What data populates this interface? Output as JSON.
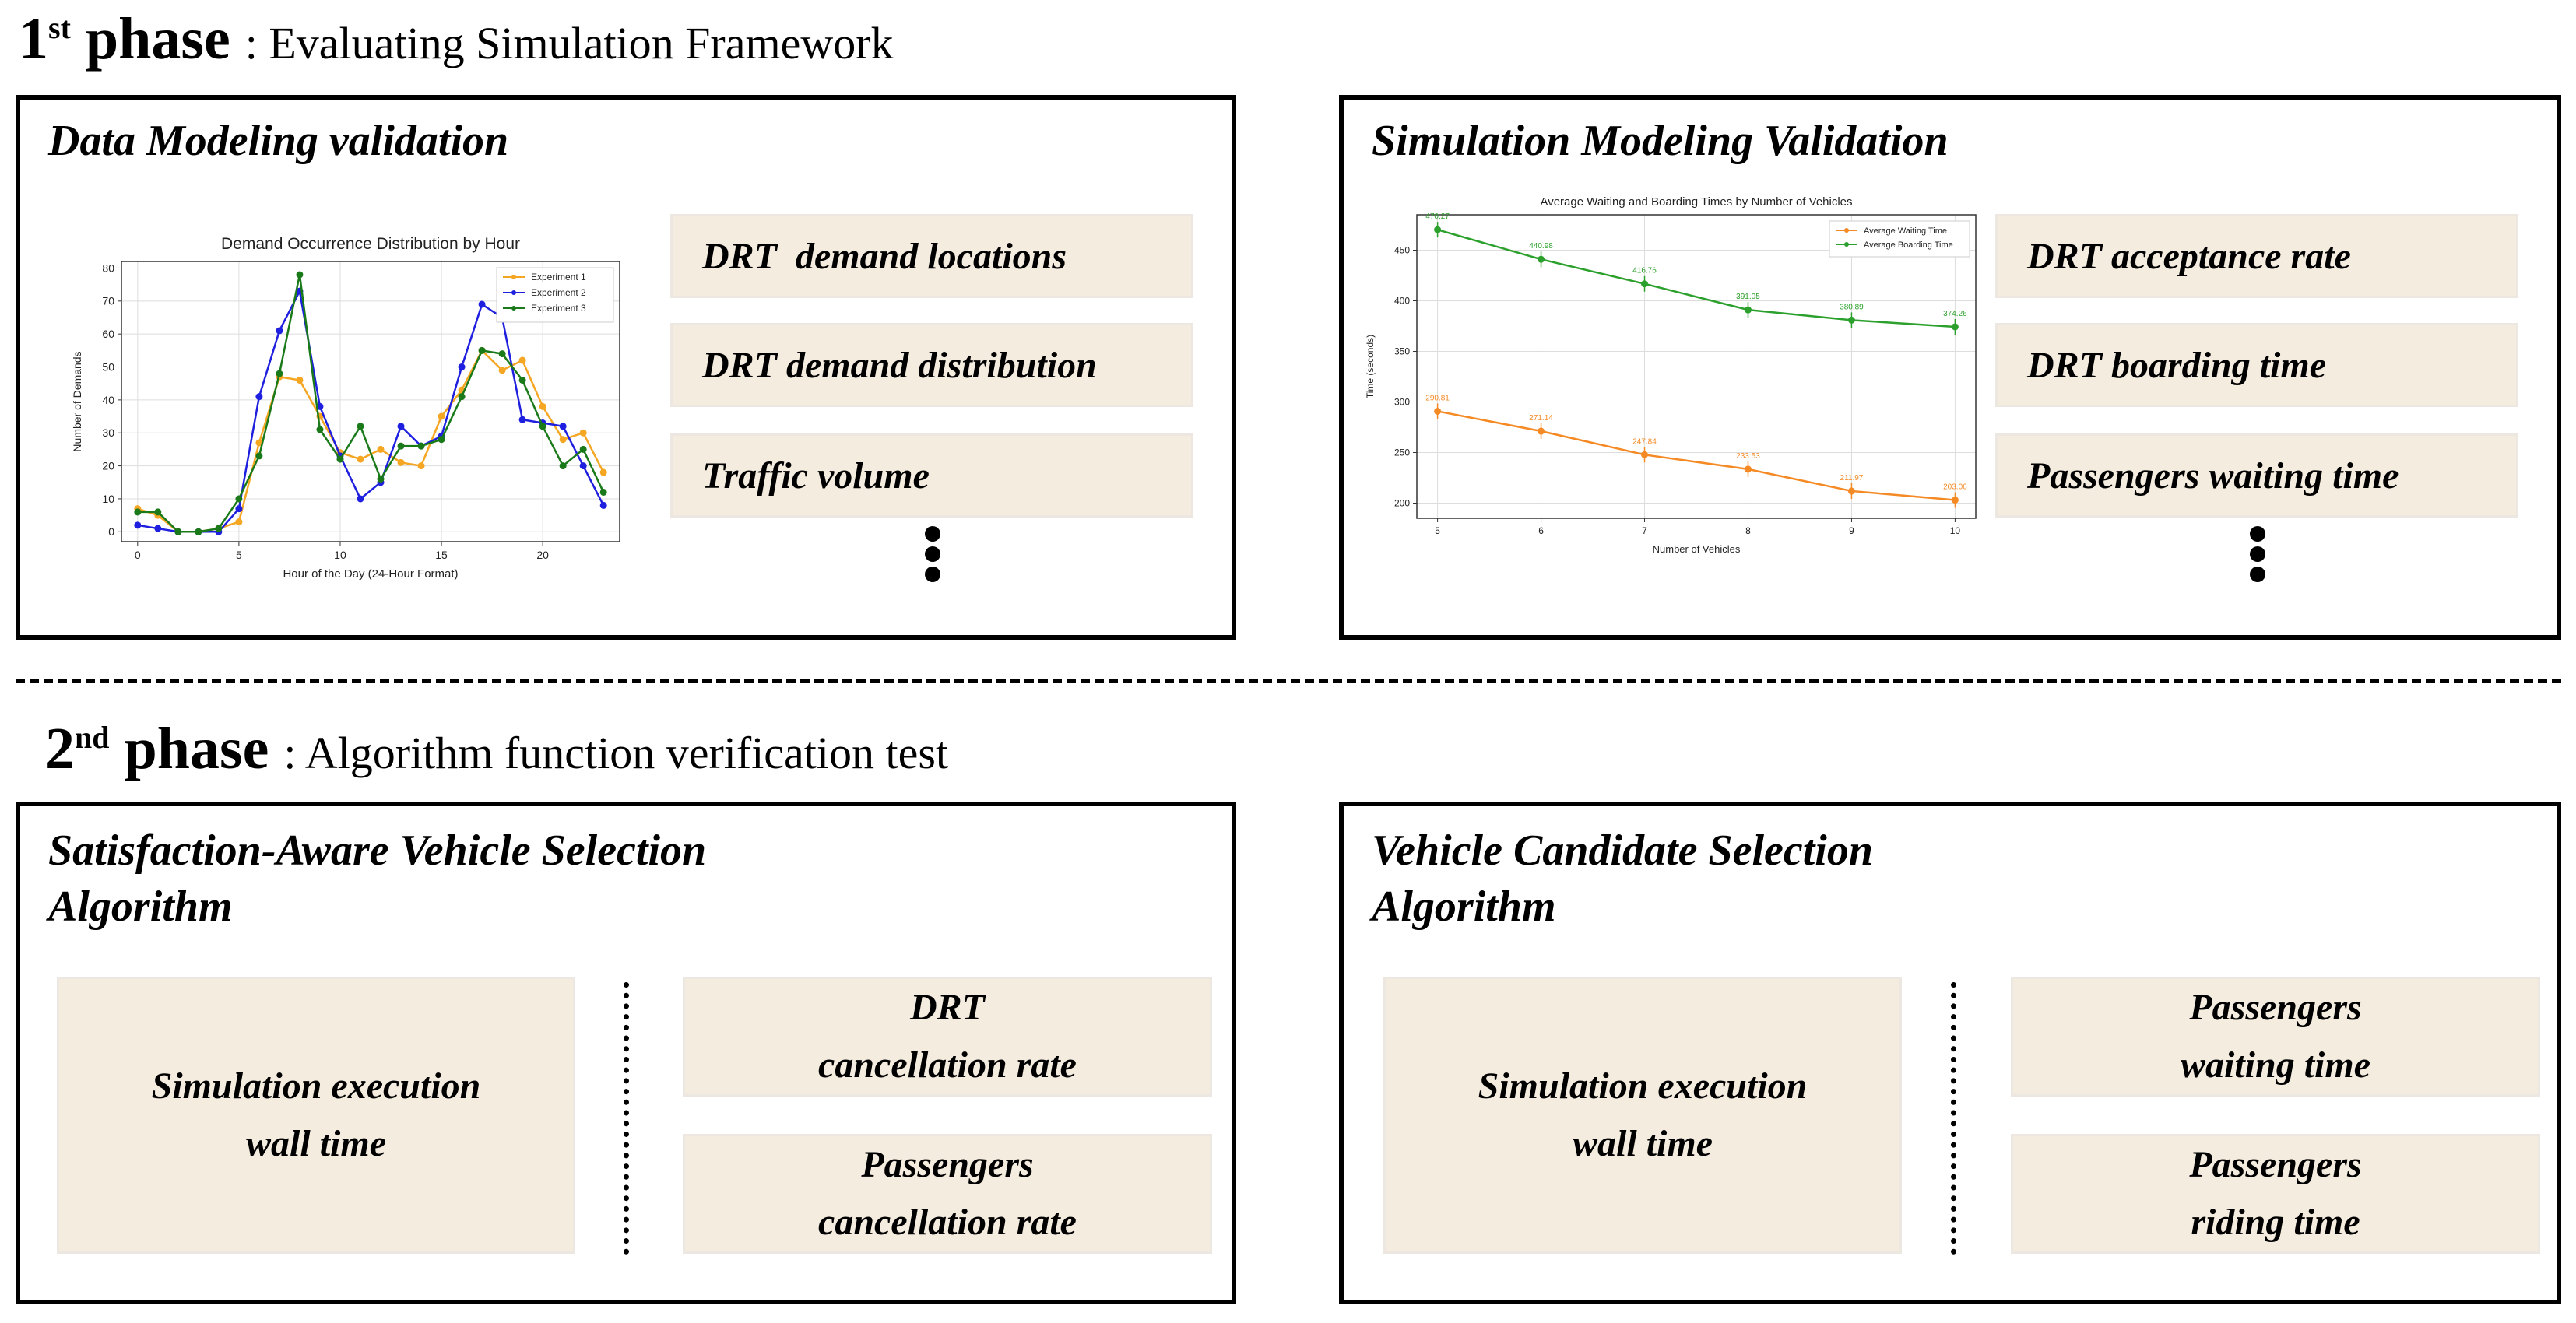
{
  "phase1": {
    "label": "1",
    "sup": "st",
    "word": "phase",
    "subtitle": ": Evaluating Simulation Framework",
    "left_panel": {
      "title": "Data Modeling validation",
      "metrics": [
        "DRT  demand locations",
        "DRT demand distribution",
        "Traffic volume"
      ]
    },
    "right_panel": {
      "title": "Simulation Modeling Validation",
      "metrics": [
        "DRT acceptance rate",
        "DRT boarding time",
        "Passengers waiting time"
      ]
    }
  },
  "phase2": {
    "label": "2",
    "sup": "nd",
    "word": "phase",
    "subtitle": ": Algorithm function verification test",
    "left_panel": {
      "title_line1": "Satisfaction-Aware Vehicle Selection",
      "title_line2": "Algorithm",
      "main_metric_line1": "Simulation execution",
      "main_metric_line2": "wall time",
      "metric1_line1": "DRT",
      "metric1_line2": "cancellation rate",
      "metric2_line1": "Passengers",
      "metric2_line2": "cancellation rate"
    },
    "right_panel": {
      "title_line1": "Vehicle Candidate Selection",
      "title_line2": "Algorithm",
      "main_metric_line1": "Simulation execution",
      "main_metric_line2": "wall time",
      "metric1_line1": "Passengers",
      "metric1_line2": "waiting time",
      "metric2_line1": "Passengers",
      "metric2_line2": "riding time"
    }
  },
  "chart_data": [
    {
      "type": "line",
      "title": "Demand Occurrence Distribution by Hour",
      "xlabel": "Hour of the Day (24-Hour Format)",
      "ylabel": "Number of Demands",
      "xlim": [
        -0.8,
        23.8
      ],
      "ylim": [
        -3,
        82
      ],
      "xticks": [
        0,
        5,
        10,
        15,
        20
      ],
      "yticks": [
        0,
        10,
        20,
        30,
        40,
        50,
        60,
        70,
        80
      ],
      "grid": true,
      "legend": "top-right",
      "x": [
        0,
        1,
        2,
        3,
        4,
        5,
        6,
        7,
        8,
        9,
        10,
        11,
        12,
        13,
        14,
        15,
        16,
        17,
        18,
        19,
        20,
        21,
        22,
        23
      ],
      "series": [
        {
          "name": "Experiment 1",
          "color": "#f5a623",
          "values": [
            7,
            5,
            0,
            0,
            1,
            3,
            27,
            47,
            46,
            35,
            24,
            22,
            25,
            21,
            20,
            35,
            43,
            55,
            49,
            52,
            38,
            28,
            30,
            18
          ]
        },
        {
          "name": "Experiment 2",
          "color": "#1f1fe0",
          "values": [
            2,
            1,
            0,
            0,
            0,
            7,
            41,
            61,
            73,
            38,
            23,
            10,
            15,
            32,
            26,
            29,
            50,
            69,
            65,
            34,
            33,
            32,
            20,
            8
          ]
        },
        {
          "name": "Experiment 3",
          "color": "#1a7a1a",
          "values": [
            6,
            6,
            0,
            0,
            1,
            10,
            23,
            48,
            78,
            31,
            22,
            32,
            16,
            26,
            26,
            28,
            41,
            55,
            54,
            46,
            32,
            20,
            25,
            12
          ]
        }
      ]
    },
    {
      "type": "line",
      "title": "Average Waiting and Boarding Times by Number of Vehicles",
      "xlabel": "Number of Vehicles",
      "ylabel": "Time (seconds)",
      "xlim": [
        4.8,
        10.2
      ],
      "ylim": [
        185,
        485
      ],
      "xticks": [
        5,
        6,
        7,
        8,
        9,
        10
      ],
      "yticks": [
        200,
        250,
        300,
        350,
        400,
        450
      ],
      "grid": true,
      "legend": "top-right",
      "x": [
        5,
        6,
        7,
        8,
        9,
        10
      ],
      "series": [
        {
          "name": "Average Waiting Time",
          "color": "#f58a25",
          "values": [
            290.81,
            271.14,
            247.84,
            233.53,
            211.97,
            203.06
          ]
        },
        {
          "name": "Average Boarding Time",
          "color": "#2ca02c",
          "values": [
            470.27,
            440.98,
            416.76,
            391.05,
            380.89,
            374.26
          ]
        }
      ]
    }
  ]
}
